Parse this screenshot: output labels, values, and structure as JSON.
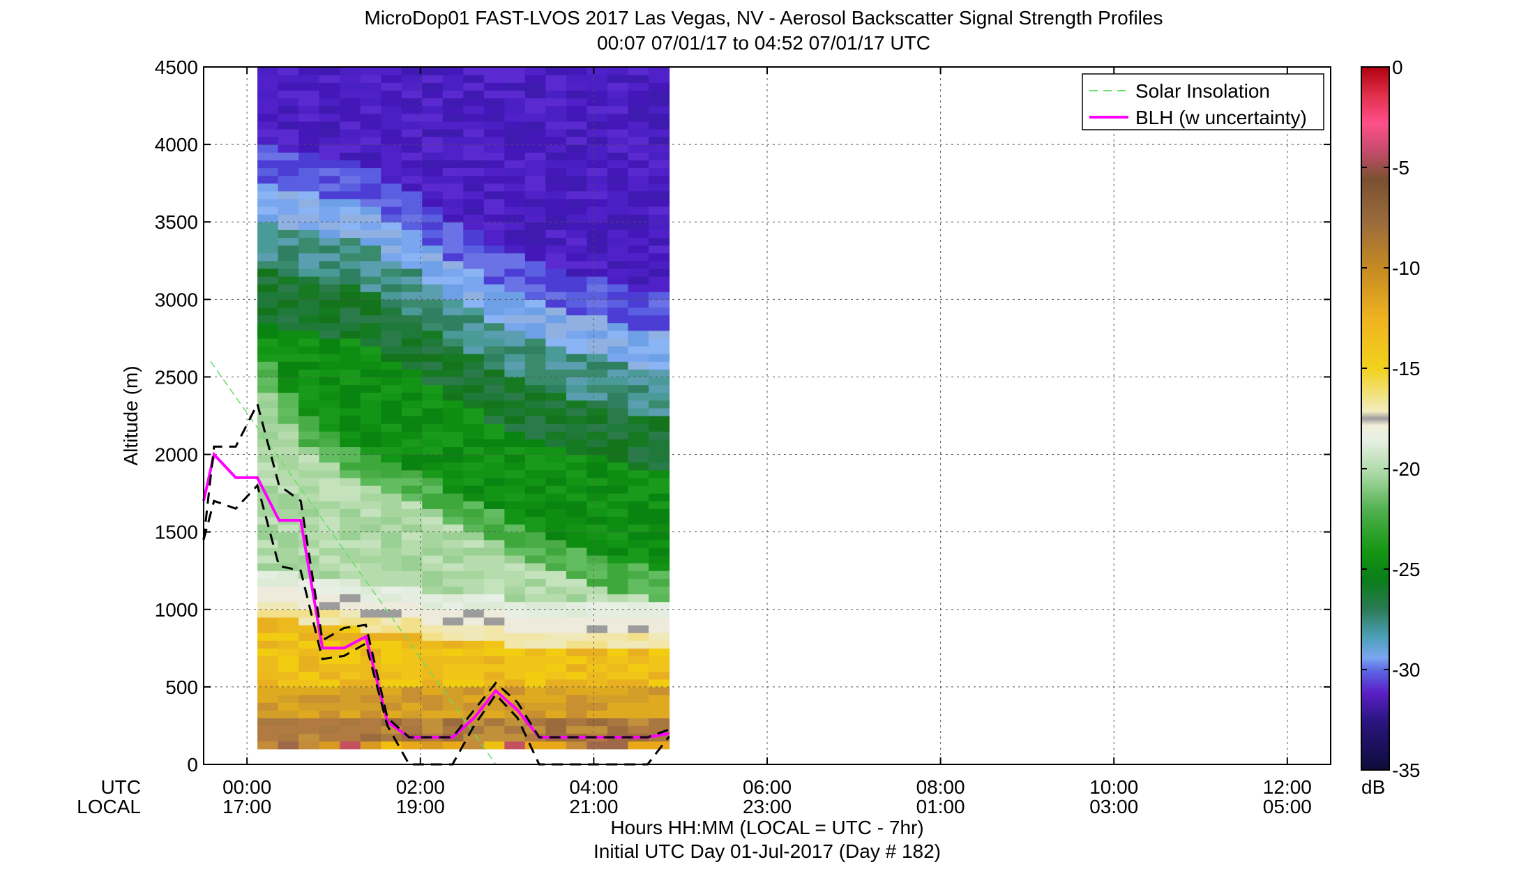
{
  "chart_data": {
    "type": "heatmap",
    "title_line1": "MicroDop01 FAST-LVOS 2017 Las Vegas, NV - Aerosol Backscatter Signal Strength Profiles",
    "title_line2": "00:07 07/01/17 to 04:52 07/01/17  UTC",
    "ylabel": "Altitude (m)",
    "xlabel_line1": "Hours HH:MM  (LOCAL = UTC - 7hr)",
    "xlabel_line2": "Initial UTC Day 01-Jul-2017 (Day # 182)",
    "row_label_utc": "UTC",
    "row_label_local": "LOCAL",
    "xlim_hours": [
      -0.5,
      12.5
    ],
    "ylim": [
      0,
      4500
    ],
    "grid": true,
    "y_ticks": [
      0,
      500,
      1000,
      1500,
      2000,
      2500,
      3000,
      3500,
      4000,
      4500
    ],
    "x_ticks": [
      {
        "hour": 0,
        "utc": "00:00",
        "local": "17:00"
      },
      {
        "hour": 2,
        "utc": "02:00",
        "local": "19:00"
      },
      {
        "hour": 4,
        "utc": "04:00",
        "local": "21:00"
      },
      {
        "hour": 6,
        "utc": "06:00",
        "local": "23:00"
      },
      {
        "hour": 8,
        "utc": "08:00",
        "local": "01:00"
      },
      {
        "hour": 10,
        "utc": "10:00",
        "local": "03:00"
      },
      {
        "hour": 12,
        "utc": "12:00",
        "local": "05:00"
      }
    ],
    "data_time_range_hours": [
      0.12,
      4.87
    ],
    "data_altitude_range_m": [
      100,
      4500
    ],
    "colorbar": {
      "label": "dB",
      "range": [
        -35,
        0
      ],
      "ticks": [
        0,
        -5,
        -10,
        -15,
        -20,
        -25,
        -30,
        -35
      ]
    },
    "legend": {
      "position": "top-right",
      "entries": [
        {
          "label": "Solar Insolation",
          "color": "#66dd66",
          "style": "dashed"
        },
        {
          "label": "BLH (w uncertainty)",
          "color": "#ff00ff",
          "style": "solid"
        }
      ]
    },
    "profile_features": {
      "upper_bound_3_5_layer_altitude_m": [
        3750,
        3700,
        3700,
        3650,
        3650,
        3600,
        3500,
        3450,
        3350,
        3250,
        3200,
        3100,
        3050,
        3000,
        2950,
        2900,
        2900,
        2850,
        2800,
        2800
      ],
      "mixed_layer_top_m": [
        2600,
        2400,
        2250,
        2150,
        2050,
        2000,
        1950,
        1900,
        1850,
        1750,
        1700,
        1650,
        1550,
        1500,
        1450,
        1400,
        1350,
        1300,
        1300,
        1250
      ],
      "gray_layer_m": [
        1100,
        1100,
        1050,
        1050,
        1050,
        1000,
        1000,
        1000,
        950,
        950,
        950,
        950,
        900,
        900,
        900,
        900,
        900,
        900,
        900,
        900
      ]
    },
    "series": [
      {
        "name": "BLH (w uncertainty)",
        "color": "#ff00ff",
        "x": [
          -0.5,
          -0.38,
          -0.13,
          0.12,
          0.37,
          0.62,
          0.87,
          1.12,
          1.37,
          1.62,
          1.87,
          2.12,
          2.37,
          2.62,
          2.87,
          3.12,
          3.37,
          3.62,
          3.87,
          4.12,
          4.37,
          4.62,
          4.87
        ],
        "y": [
          1700,
          2000,
          1850,
          1850,
          1575,
          1575,
          750,
          750,
          825,
          275,
          175,
          175,
          175,
          300,
          475,
          350,
          175,
          175,
          175,
          175,
          175,
          175,
          200
        ]
      },
      {
        "name": "BLH upper uncertainty",
        "color": "#000000",
        "x": [
          -0.5,
          -0.38,
          -0.13,
          0.12,
          0.37,
          0.62,
          0.87,
          1.12,
          1.37,
          1.62,
          1.87,
          2.12,
          2.37,
          2.62,
          2.87,
          3.12,
          3.37,
          3.62,
          3.87,
          4.12,
          4.37,
          4.62,
          4.87
        ],
        "y": [
          1450,
          2050,
          2050,
          2325,
          1800,
          1700,
          800,
          880,
          900,
          300,
          175,
          175,
          175,
          350,
          525,
          400,
          175,
          175,
          175,
          175,
          175,
          175,
          225
        ]
      },
      {
        "name": "BLH lower uncertainty",
        "color": "#000000",
        "x": [
          -0.5,
          -0.38,
          -0.13,
          0.12,
          0.37,
          0.62,
          0.87,
          1.12,
          1.37,
          1.62,
          1.87,
          2.12,
          2.37,
          2.62,
          2.87,
          3.12,
          3.37,
          3.62,
          3.87,
          4.12,
          4.37,
          4.62,
          4.87
        ],
        "y": [
          1450,
          1700,
          1650,
          1800,
          1280,
          1250,
          680,
          700,
          780,
          250,
          0,
          0,
          0,
          250,
          450,
          300,
          0,
          0,
          0,
          0,
          0,
          0,
          180
        ]
      },
      {
        "name": "Solar Insolation",
        "color": "#66dd66",
        "x": [
          -0.42,
          2.87
        ],
        "y": [
          2600,
          0
        ]
      }
    ]
  }
}
